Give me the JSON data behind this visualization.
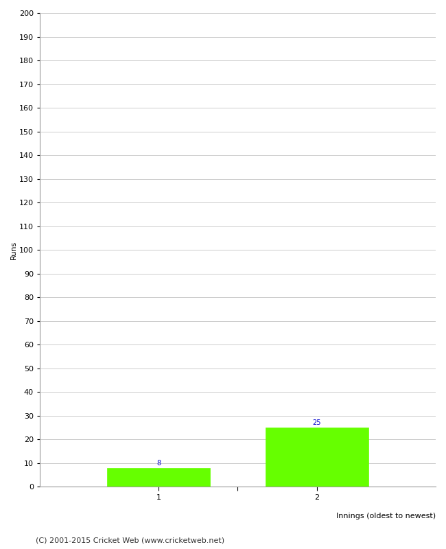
{
  "categories": [
    "1",
    "2"
  ],
  "values": [
    8,
    25
  ],
  "bar_color": "#66ff00",
  "bar_edge_color": "#66ff00",
  "title": "",
  "xlabel": "Innings (oldest to newest)",
  "ylabel": "Runs",
  "ylim": [
    0,
    200
  ],
  "yticks": [
    0,
    10,
    20,
    30,
    40,
    50,
    60,
    70,
    80,
    90,
    100,
    110,
    120,
    130,
    140,
    150,
    160,
    170,
    180,
    190,
    200
  ],
  "annotation_color": "#0000cc",
  "annotation_fontsize": 7,
  "xlabel_fontsize": 8,
  "ylabel_fontsize": 8,
  "tick_fontsize": 8,
  "footer_text": "(C) 2001-2015 Cricket Web (www.cricketweb.net)",
  "footer_fontsize": 8,
  "background_color": "#ffffff",
  "grid_color": "#cccccc",
  "bar_width": 0.65,
  "x_positions": [
    1,
    2
  ],
  "xlim": [
    0.25,
    2.75
  ],
  "xticks": [
    1,
    1.5,
    2
  ]
}
